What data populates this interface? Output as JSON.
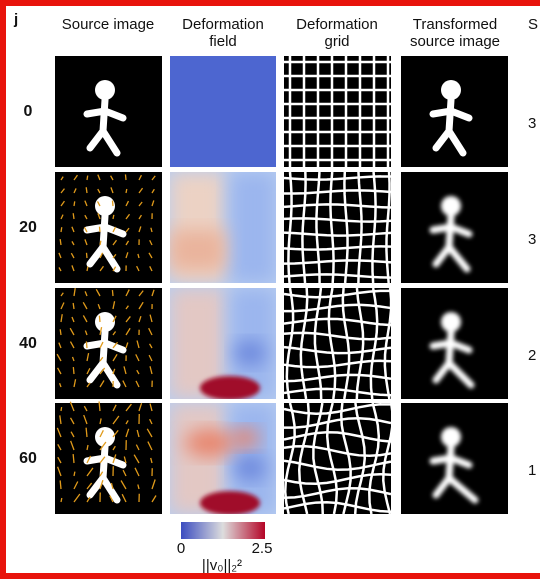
{
  "panel_label": "j",
  "columns": [
    [
      "Source image"
    ],
    [
      "Deformation",
      "field"
    ],
    [
      "Deformation",
      "grid"
    ],
    [
      "Transformed",
      "source image"
    ],
    [
      "S"
    ]
  ],
  "rows": [
    {
      "label": "0",
      "right": "3"
    },
    {
      "label": "20",
      "right": "3"
    },
    {
      "label": "40",
      "right": "2"
    },
    {
      "label": "60",
      "right": "1"
    }
  ],
  "colorbar": {
    "min": "0",
    "max": "2.5",
    "label": "||v₀||₂²"
  }
}
